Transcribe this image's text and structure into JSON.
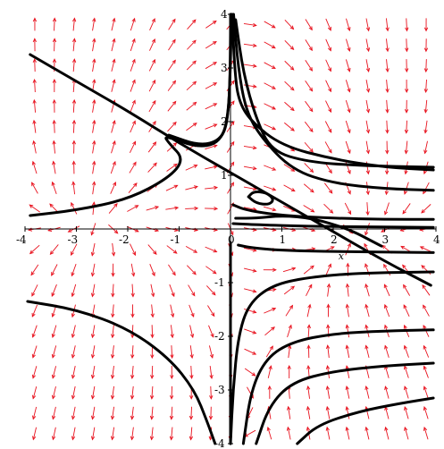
{
  "chart_data": {
    "type": "vector-field-phase-portrait",
    "xlim": [
      -4,
      4
    ],
    "ylim": [
      -4,
      4
    ],
    "xlabel": "x",
    "ylabel": "",
    "grid": false,
    "x_ticks": [
      "-4",
      "-3",
      "-2",
      "-1",
      "0",
      "1",
      "2",
      "3",
      "4"
    ],
    "y_ticks": [
      "-4",
      "-3",
      "-2",
      "-1",
      "1",
      "2",
      "3",
      "4"
    ],
    "field_color": "#e8121e",
    "trajectory_color": "#000000",
    "vector_field_grid": {
      "nx": 21,
      "ny": 21
    },
    "trajectories": [
      {
        "name": "diag-long",
        "points": [
          [
            -3.9,
            3.25
          ],
          [
            -3,
            2.75
          ],
          [
            -2,
            2.2
          ],
          [
            -1,
            1.6
          ],
          [
            0,
            1.05
          ],
          [
            1,
            0.5
          ],
          [
            2,
            -0.05
          ],
          [
            3,
            -0.6
          ],
          [
            3.9,
            -1.05
          ]
        ]
      },
      {
        "name": "upper-left-loop",
        "points": [
          [
            -3.9,
            0.25
          ],
          [
            -3,
            0.35
          ],
          [
            -2,
            0.55
          ],
          [
            -1.2,
            0.95
          ],
          [
            -0.9,
            1.3
          ],
          [
            -1.2,
            1.6
          ],
          [
            -1.3,
            1.75
          ],
          [
            -0.6,
            1.5
          ],
          [
            -0.15,
            1.65
          ],
          [
            -0.02,
            2.3
          ],
          [
            0.0,
            3.5
          ],
          [
            0.0,
            4.0
          ]
        ]
      },
      {
        "name": "upper-left-spike",
        "points": [
          [
            -1.2,
            1.75
          ],
          [
            -0.6,
            1.55
          ],
          [
            -0.2,
            1.65
          ],
          [
            -0.05,
            2.0
          ],
          [
            0.0,
            3.0
          ],
          [
            0.02,
            4.0
          ]
        ]
      },
      {
        "name": "upper-right-1",
        "points": [
          [
            0.03,
            4.0
          ],
          [
            0.08,
            3.0
          ],
          [
            0.15,
            2.4
          ],
          [
            0.4,
            2.0
          ],
          [
            1.0,
            1.55
          ],
          [
            2.0,
            1.3
          ],
          [
            3.0,
            1.15
          ],
          [
            3.95,
            1.1
          ]
        ]
      },
      {
        "name": "upper-right-2",
        "points": [
          [
            0.06,
            4.0
          ],
          [
            0.15,
            3.0
          ],
          [
            0.3,
            2.2
          ],
          [
            0.6,
            1.7
          ],
          [
            1.2,
            1.1
          ],
          [
            2.0,
            0.85
          ],
          [
            3.0,
            0.75
          ],
          [
            3.95,
            0.72
          ]
        ]
      },
      {
        "name": "upper-right-3",
        "points": [
          [
            0.1,
            3.9
          ],
          [
            0.25,
            2.9
          ],
          [
            0.5,
            2.05
          ],
          [
            0.8,
            1.45
          ],
          [
            1.5,
            1.25
          ],
          [
            2.5,
            1.18
          ],
          [
            3.95,
            1.15
          ]
        ]
      },
      {
        "name": "right-near-axis-1",
        "points": [
          [
            0.05,
            0.45
          ],
          [
            0.3,
            0.35
          ],
          [
            1.0,
            0.25
          ],
          [
            2.0,
            0.2
          ],
          [
            3.0,
            0.18
          ],
          [
            3.95,
            0.18
          ]
        ]
      },
      {
        "name": "right-near-axis-2",
        "points": [
          [
            0.05,
            0.1
          ],
          [
            0.5,
            0.08
          ],
          [
            1.5,
            0.05
          ],
          [
            2.5,
            0.04
          ],
          [
            3.95,
            0.03
          ]
        ]
      },
      {
        "name": "small-loop",
        "points": [
          [
            0.35,
            0.6
          ],
          [
            0.5,
            0.48
          ],
          [
            0.75,
            0.45
          ],
          [
            0.85,
            0.55
          ],
          [
            0.7,
            0.68
          ],
          [
            0.45,
            0.7
          ],
          [
            0.35,
            0.6
          ]
        ]
      },
      {
        "name": "triangle-arm",
        "points": [
          [
            0.1,
            0.2
          ],
          [
            0.5,
            0.2
          ],
          [
            1.0,
            0.25
          ],
          [
            1.6,
            0.2
          ],
          [
            2.3,
            0.0
          ],
          [
            2.8,
            -0.25
          ],
          [
            3.0,
            -0.35
          ],
          [
            2.7,
            -0.2
          ]
        ]
      },
      {
        "name": "lower-right-1",
        "points": [
          [
            0.0,
            -4.0
          ],
          [
            0.05,
            -3.0
          ],
          [
            0.15,
            -2.0
          ],
          [
            0.35,
            -1.4
          ],
          [
            0.8,
            -1.05
          ],
          [
            1.5,
            -0.9
          ],
          [
            2.5,
            -0.82
          ],
          [
            3.95,
            -0.8
          ]
        ]
      },
      {
        "name": "lower-right-2",
        "points": [
          [
            0.25,
            -4.0
          ],
          [
            0.4,
            -3.0
          ],
          [
            0.7,
            -2.4
          ],
          [
            1.2,
            -2.1
          ],
          [
            2.0,
            -1.95
          ],
          [
            3.0,
            -1.9
          ],
          [
            3.95,
            -1.88
          ]
        ]
      },
      {
        "name": "lower-right-3",
        "points": [
          [
            0.5,
            -4.0
          ],
          [
            0.75,
            -3.3
          ],
          [
            1.2,
            -2.85
          ],
          [
            2.0,
            -2.65
          ],
          [
            3.0,
            -2.55
          ],
          [
            3.95,
            -2.5
          ]
        ]
      },
      {
        "name": "lower-right-4",
        "points": [
          [
            1.3,
            -4.0
          ],
          [
            1.7,
            -3.65
          ],
          [
            2.5,
            -3.4
          ],
          [
            3.3,
            -3.25
          ],
          [
            3.95,
            -3.15
          ]
        ]
      },
      {
        "name": "lower-right-5",
        "points": [
          [
            0.15,
            -0.3
          ],
          [
            0.4,
            -0.35
          ],
          [
            1.0,
            -0.4
          ],
          [
            2.0,
            -0.42
          ],
          [
            3.0,
            -0.43
          ],
          [
            3.95,
            -0.44
          ]
        ]
      },
      {
        "name": "lower-left-1",
        "points": [
          [
            -3.95,
            -1.35
          ],
          [
            -3.0,
            -1.5
          ],
          [
            -2.0,
            -1.85
          ],
          [
            -1.2,
            -2.4
          ],
          [
            -0.7,
            -3.0
          ],
          [
            -0.45,
            -3.6
          ],
          [
            -0.3,
            -4.0
          ]
        ]
      },
      {
        "name": "axis-spike",
        "points": [
          [
            0.0,
            -0.25
          ],
          [
            0.0,
            -1.0
          ],
          [
            0.0,
            -2.0
          ],
          [
            0.0,
            -3.0
          ],
          [
            0.0,
            -4.0
          ]
        ]
      }
    ]
  }
}
